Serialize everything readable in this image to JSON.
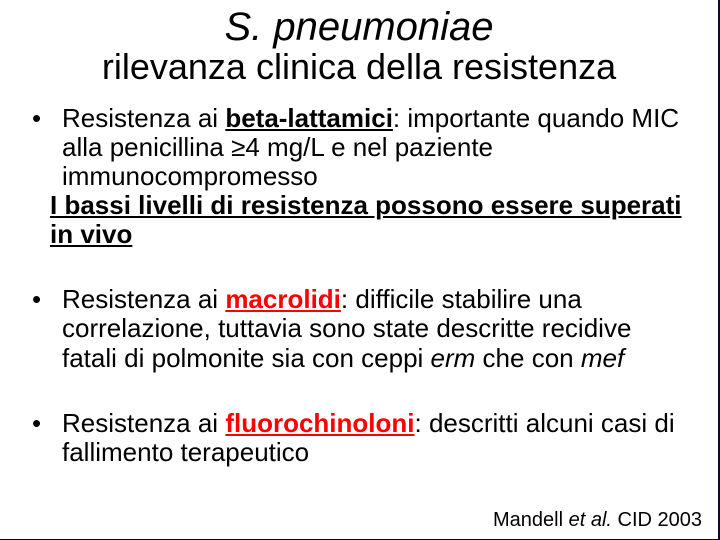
{
  "colors": {
    "slide_border": "#0a082e",
    "slide_background": "#ffffff",
    "text": "#000000",
    "highlight": "#ff0000"
  },
  "typography": {
    "title_main_fontsize": 40,
    "title_sub_fontsize": 36,
    "body_fontsize": 26,
    "citation_fontsize": 20,
    "font_family": "Arial"
  },
  "title": {
    "main": "S. pneumoniae",
    "sub": "rilevanza clinica della resistenza"
  },
  "bullets": {
    "b1": {
      "pre": "Resistenza ai ",
      "kw": "beta-lattamici",
      "post": ": importante quando MIC alla penicillina ≥4 mg/L e nel paziente immunocompromesso",
      "hang": "I bassi livelli di resistenza possono essere superati in vivo"
    },
    "b2": {
      "pre": "Resistenza ai ",
      "kw": "macrolidi",
      "post1": ": difficile stabilire una correlazione, tuttavia sono state descritte recidive fatali di polmonite sia con ceppi ",
      "ital1": "erm",
      "post2": " che con ",
      "ital2": "mef"
    },
    "b3": {
      "pre": "Resistenza ai ",
      "kw": "fluorochinoloni",
      "post": ": descritti alcuni casi di fallimento terapeutico"
    }
  },
  "citation": {
    "author": "Mandell ",
    "etal": "et al.",
    "ref": " CID 2003"
  }
}
